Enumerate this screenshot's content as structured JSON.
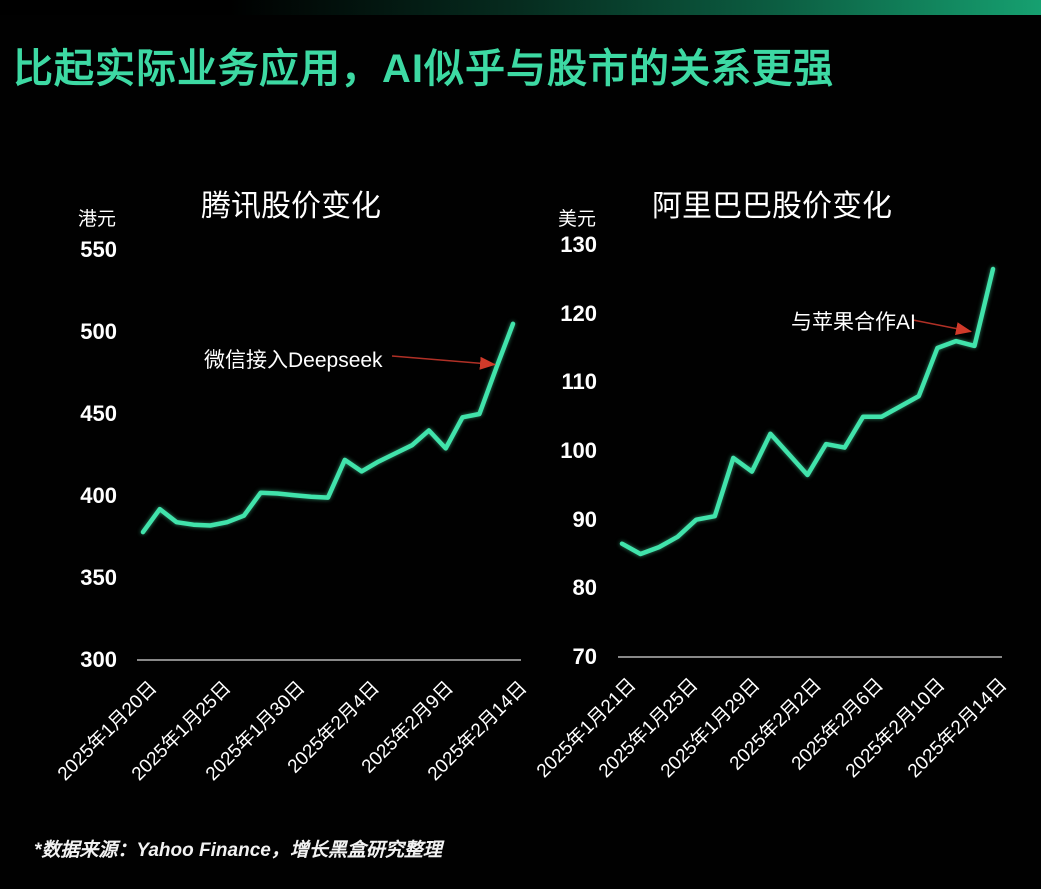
{
  "slide": {
    "title": "比起实际业务应用，AI似乎与股市的关系更强",
    "footer": "*数据来源：Yahoo Finance，增长黑盒研究整理"
  },
  "colors": {
    "background": "#010101",
    "title_green": "#3dd9a3",
    "line_green": "#41e3ab",
    "axis_gray": "#d9d9d9",
    "tick_white": "#ffffff",
    "arrow_red": "#c0392b",
    "gradient_teal": "#16a070"
  },
  "chart_data": [
    {
      "type": "line",
      "title": "腾讯股价变化",
      "unit": "港元",
      "ylabel": "港元",
      "ylim": [
        300,
        550
      ],
      "yticks": [
        300,
        350,
        400,
        450,
        500,
        550
      ],
      "grid": false,
      "legend": null,
      "xticks": [
        "2025年1月20日",
        "2025年1月25日",
        "2025年1月30日",
        "2025年2月4日",
        "2025年2月9日",
        "2025年2月14日"
      ],
      "values": [
        378,
        392,
        384,
        382.5,
        382,
        384,
        388,
        402,
        401.5,
        400.5,
        399.5,
        399,
        422,
        415,
        421,
        426,
        431,
        440,
        429,
        448,
        450,
        478,
        505
      ],
      "annotation": {
        "text": "微信接入Deepseek",
        "points_to_value": 478
      }
    },
    {
      "type": "line",
      "title": "阿里巴巴股价变化",
      "unit": "美元",
      "ylabel": "美元",
      "ylim": [
        70,
        130
      ],
      "yticks": [
        70,
        80,
        90,
        100,
        110,
        120,
        130
      ],
      "grid": false,
      "legend": null,
      "xticks": [
        "2025年1月21日",
        "2025年1月25日",
        "2025年1月29日",
        "2025年2月2日",
        "2025年2月6日",
        "2025年2月10日",
        "2025年2月14日"
      ],
      "values": [
        86.5,
        85,
        86,
        87.5,
        90,
        90.5,
        99,
        97,
        102.5,
        99.5,
        96.5,
        101,
        100.5,
        105,
        105,
        106.5,
        108,
        115,
        116,
        115.3,
        126.5
      ],
      "annotation": {
        "text": "与苹果合作AI",
        "points_to_value": 116
      }
    }
  ]
}
